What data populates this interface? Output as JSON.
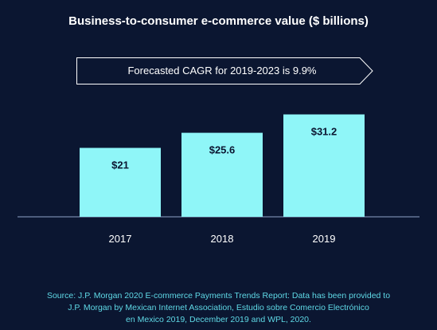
{
  "colors": {
    "background": "#0b1631",
    "bar": "#8ff6f8",
    "text": "#ffffff",
    "source_text": "#5fd9e6",
    "label_dark": "#0b1631"
  },
  "cagr_note": "Forecasted CAGR for 2019-2023 is 9.9%",
  "source": {
    "line1": "Source: J.P. Morgan 2020 E-commerce Payments Trends Report: Data has been provided to",
    "line2": "J.P. Morgan by Mexican Internet Association, Estudio sobre Comercio Electrónico",
    "line3": "en Mexico 2019,  December 2019 and WPL, 2020."
  },
  "chart_data": {
    "type": "bar",
    "title": "Business-to-consumer e-commerce value ($ billions)",
    "categories": [
      "2017",
      "2018",
      "2019"
    ],
    "values": [
      21,
      25.6,
      31.2
    ],
    "value_labels": [
      "$21",
      "$25.6",
      "$31.2"
    ],
    "xlabel": "",
    "ylabel": "",
    "ylim": [
      0,
      34
    ],
    "grid": false,
    "legend": "none"
  }
}
